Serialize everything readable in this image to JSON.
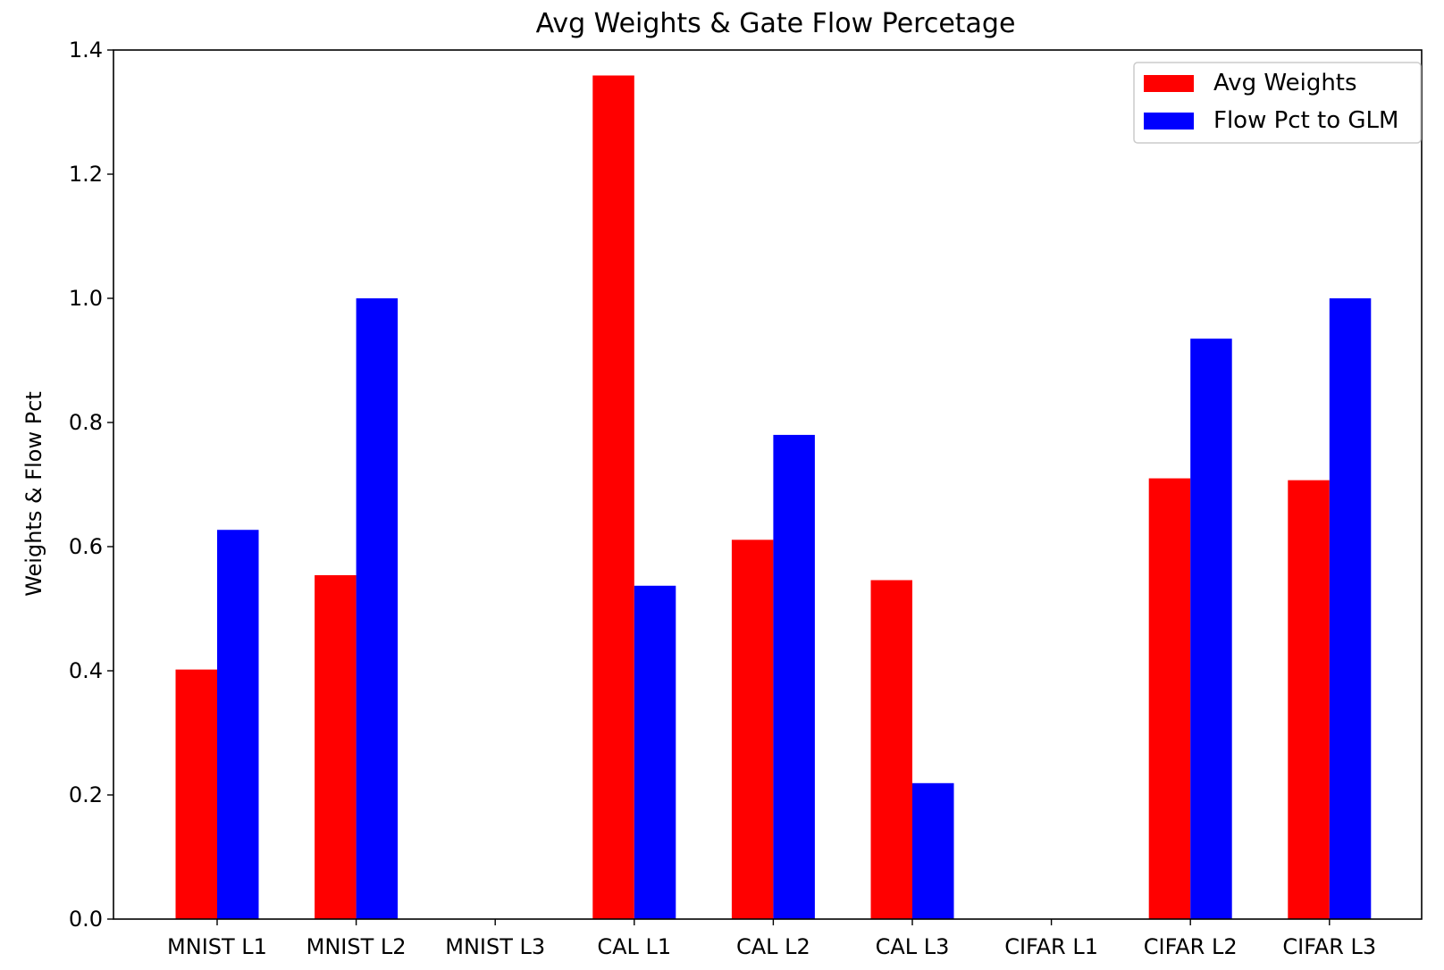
{
  "chart_data": {
    "type": "bar",
    "title": "Avg Weights & Gate Flow Percetage",
    "xlabel": "",
    "ylabel": "Weights & Flow Pct",
    "categories": [
      "MNIST L1",
      "MNIST L2",
      "MNIST L3",
      "CAL L1",
      "CAL L2",
      "CAL L3",
      "CIFAR L1",
      "CIFAR L2",
      "CIFAR L3"
    ],
    "series": [
      {
        "name": "Avg Weights",
        "color": "#ff0000",
        "values": [
          0.402,
          0.554,
          0,
          1.359,
          0.611,
          0.546,
          0,
          0.71,
          0.707
        ]
      },
      {
        "name": "Flow Pct to GLM",
        "color": "#0000ff",
        "values": [
          0.627,
          1.0,
          0,
          0.537,
          0.78,
          0.219,
          0,
          0.935,
          1.0
        ]
      }
    ],
    "ylim": [
      0,
      1.4
    ],
    "yticks": [
      "0.0",
      "0.2",
      "0.4",
      "0.6",
      "0.8",
      "1.0",
      "1.2",
      "1.4"
    ],
    "grid": false,
    "legend_position": "top-right"
  }
}
